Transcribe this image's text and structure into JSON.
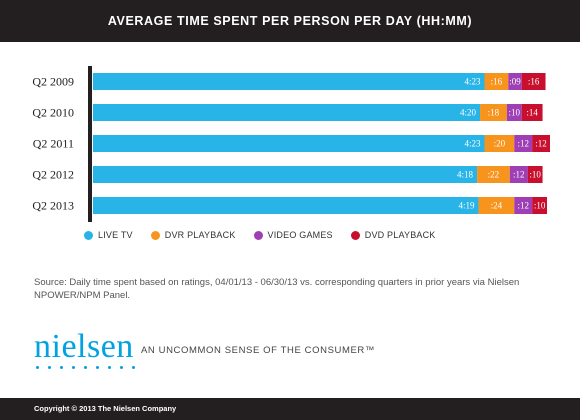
{
  "title": "AVERAGE TIME SPENT PER PERSON PER DAY (HH:MM)",
  "chart_data": {
    "type": "bar",
    "orientation": "horizontal",
    "stacked": true,
    "unit": "minutes",
    "categories": [
      "Q2 2009",
      "Q2 2010",
      "Q2 2011",
      "Q2 2012",
      "Q2 2013"
    ],
    "series": [
      {
        "name": "LIVE TV",
        "color": "#29b4e8",
        "values": [
          263,
          260,
          263,
          258,
          259
        ],
        "labels": [
          "4:23",
          "4:20",
          "4:23",
          "4:18",
          "4:19"
        ]
      },
      {
        "name": "DVR PLAYBACK",
        "color": "#f7941d",
        "values": [
          16,
          18,
          20,
          22,
          24
        ],
        "labels": [
          ":16",
          ":18",
          ":20",
          ":22",
          ":24"
        ]
      },
      {
        "name": "VIDEO GAMES",
        "color": "#9e3fb6",
        "values": [
          9,
          10,
          12,
          12,
          12
        ],
        "labels": [
          ":09",
          ":10",
          ":12",
          ":12",
          ":12"
        ]
      },
      {
        "name": "DVD PLAYBACK",
        "color": "#c8102e",
        "values": [
          16,
          14,
          12,
          10,
          10
        ],
        "labels": [
          ":16",
          ":14",
          ":12",
          ":10",
          ":10"
        ]
      }
    ],
    "grid": false,
    "legend_position": "bottom"
  },
  "source": "Source: Daily time spent based on ratings, 04/01/13 - 06/30/13  vs. corresponding quarters in prior years via Nielsen NPOWER/NPM Panel.",
  "logo": "nielsen",
  "tagline": "AN UNCOMMON SENSE OF THE CONSUMER™",
  "copyright": "Copyright © 2013 The Nielsen Company"
}
